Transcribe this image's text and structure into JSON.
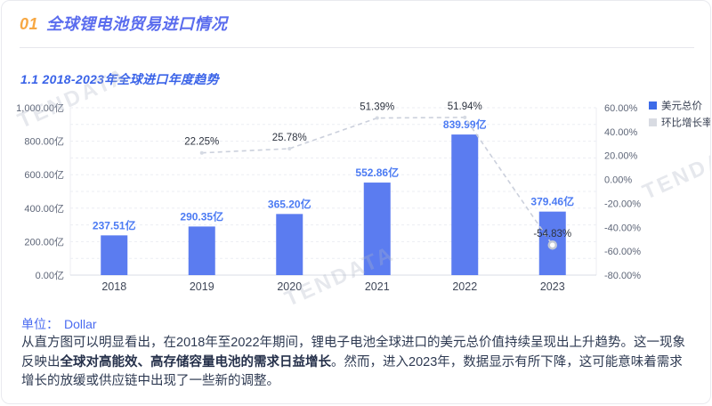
{
  "page": {
    "header": {
      "number": "01",
      "title": "全球锂电池贸易进口情况"
    },
    "section_title": "1.1 2018-2023年全球进口年度趋势",
    "unit": {
      "label": "单位：",
      "value": "Dollar"
    },
    "paragraph": {
      "pre": "从直方图可以明显看出，在2018年至2022年期间，锂电子电池全球进口的美元总价值持续呈现出上升趋势。这一现象反映出",
      "bold": "全球对高能效、高存储容量电池的需求日益增长",
      "post": "。然而，进入2023年，数据显示有所下降，这可能意味着需求增长的放缓或供应链中出现了一些新的调整。"
    },
    "watermark_text": "TENDATA",
    "colors": {
      "accent_orange": "#F7A843",
      "header_blue": "#5A6CEE",
      "section_blue": "#3A63E8",
      "unit_blue": "#4A6BF0",
      "body_text": "#2E3A52"
    }
  },
  "chart_data": {
    "type": "bar",
    "subtype": "bar+line combo (ECharts style)",
    "title": "1.1 2018-2023年全球进口年度趋势",
    "categories": [
      "2018",
      "2019",
      "2020",
      "2021",
      "2022",
      "2023"
    ],
    "series": [
      {
        "name": "美元总价",
        "type": "bar",
        "unit": "亿",
        "values": [
          237.51,
          290.35,
          365.2,
          552.86,
          839.99,
          379.46
        ],
        "labels": [
          "237.51亿",
          "290.35亿",
          "365.20亿",
          "552.86亿",
          "839.99亿",
          "379.46亿"
        ],
        "color": "#5B7CF0",
        "label_color": "#4C7BF3"
      },
      {
        "name": "环比增长率",
        "type": "line",
        "unit": "%",
        "values": [
          null,
          22.25,
          25.78,
          51.39,
          51.94,
          -54.83
        ],
        "labels": [
          null,
          "22.25%",
          "25.78%",
          "51.39%",
          "51.94%",
          "-54.83%"
        ],
        "color": "#CBD0DC",
        "label_color": "#2E3440"
      }
    ],
    "left_axis": {
      "min": 0,
      "max": 1000,
      "grid_step": 100,
      "tick_values": [
        0,
        200,
        400,
        600,
        800,
        1000
      ],
      "tick_labels": [
        "0.00亿",
        "200.00亿",
        "400.00亿",
        "600.00亿",
        "800.00亿",
        "1,000.00亿"
      ]
    },
    "right_axis": {
      "min": -80,
      "max": 60,
      "tick_values": [
        60,
        40,
        20,
        0,
        -20,
        -40,
        -60,
        -80
      ],
      "tick_labels": [
        "60.00%",
        "40.00%",
        "20.00%",
        "0.00%",
        "-20.00%",
        "-40.00%",
        "-60.00%",
        "-80.00%"
      ]
    },
    "legend": [
      {
        "label": "美元总价",
        "color": "#3D6BE8"
      },
      {
        "label": "环比增长率",
        "color": "#D8DBE2"
      }
    ],
    "legend_position": "top-right",
    "grid": true
  }
}
